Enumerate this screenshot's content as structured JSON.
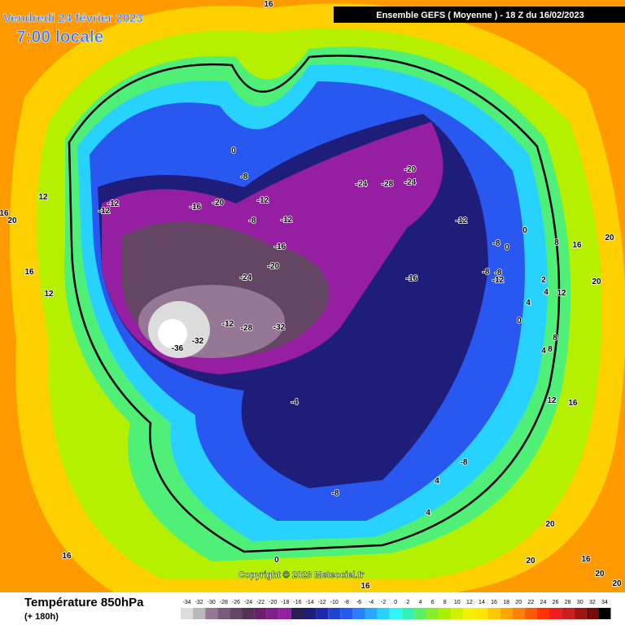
{
  "header": {
    "date": "Vendredi 24 février 2023",
    "time": "7:00 locale",
    "model": "Ensemble GEFS  ( Moyenne )  -  18 Z du 16/02/2023"
  },
  "copyright": "Copyright © 2023 Meteociel.fr",
  "footer": {
    "title": "Température 850hPa",
    "lead": "(+ 180h)"
  },
  "legend": {
    "ticks": [
      -34,
      -32,
      -30,
      -28,
      -26,
      -24,
      -22,
      -20,
      -18,
      -16,
      -14,
      -12,
      -10,
      -8,
      -6,
      -4,
      -2,
      0,
      2,
      4,
      6,
      8,
      10,
      12,
      14,
      16,
      18,
      20,
      22,
      24,
      26,
      28,
      30,
      32,
      34
    ],
    "colors": [
      "#dcdcdc",
      "#b9b9b9",
      "#967896",
      "#7a5a7a",
      "#644664",
      "#553255",
      "#6a1e6e",
      "#801e8a",
      "#961ea0",
      "#2a1e55",
      "#1e1e7a",
      "#1e28a8",
      "#1e44cc",
      "#2858f0",
      "#2880ff",
      "#28a8ff",
      "#28d2ff",
      "#30f5f5",
      "#32f0b4",
      "#5af064",
      "#86ee28",
      "#aaf000",
      "#d2f000",
      "#f5f000",
      "#ffe600",
      "#ffc800",
      "#ffa500",
      "#ff8200",
      "#ff5a00",
      "#ff3200",
      "#f01e1e",
      "#c81e1e",
      "#a01414",
      "#780a0a",
      "#000000"
    ]
  },
  "map_labels": [
    16,
    0,
    -8,
    -12,
    -12,
    12,
    16,
    20,
    16,
    12,
    -16,
    -20,
    -12,
    -8,
    -12,
    -16,
    -20,
    -24,
    -24,
    -28,
    -20,
    -24,
    -12,
    -16,
    -8,
    0,
    0,
    -8,
    -8,
    -12,
    8,
    16,
    20,
    20,
    2,
    4,
    12,
    4,
    0,
    8,
    4,
    8,
    -12,
    -28,
    -32,
    -36,
    -32,
    -4,
    12,
    16,
    -8,
    -8,
    4,
    4,
    20,
    16,
    0,
    20,
    16,
    20,
    20,
    16
  ]
}
